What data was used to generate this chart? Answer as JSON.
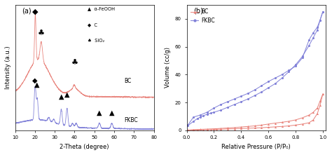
{
  "panel_a": {
    "xlabel": "2-Theta (degree)",
    "ylabel": "Intensity (a.u.)",
    "xlim": [
      10,
      80
    ],
    "label_a": "(a)",
    "bc_label": "BC",
    "fkbc_label": "FKBC",
    "bc_color": "#e8827a",
    "fkbc_color": "#8080d8",
    "legend_sym1": "▲",
    "legend_sym2": "◆",
    "legend_sym3": "♠",
    "legend_lbl1": "α-FeOOH",
    "legend_lbl2": "C",
    "legend_lbl3": "SiO₂"
  },
  "panel_b": {
    "xlabel": "Relative Pressure (P/P₀)",
    "ylabel": "Volume (cc/g)",
    "ylim": [
      0,
      90
    ],
    "xlim": [
      0.0,
      1.02
    ],
    "label_b": "(b)",
    "bc_label": "BC",
    "fkbc_label": "FKBC",
    "bc_color": "#e8827a",
    "fkbc_color": "#8080d8",
    "bc_ads_x": [
      0.01,
      0.05,
      0.08,
      0.12,
      0.15,
      0.18,
      0.22,
      0.25,
      0.3,
      0.35,
      0.4,
      0.45,
      0.5,
      0.55,
      0.6,
      0.65,
      0.7,
      0.75,
      0.8,
      0.85,
      0.9,
      0.93,
      0.96,
      0.98,
      1.0
    ],
    "bc_ads_y": [
      0.1,
      0.2,
      0.3,
      0.4,
      0.5,
      0.6,
      0.7,
      0.8,
      1.0,
      1.1,
      1.3,
      1.5,
      1.7,
      1.9,
      2.2,
      2.5,
      2.8,
      3.2,
      3.8,
      4.5,
      5.5,
      7.5,
      12.0,
      18.0,
      26.0
    ],
    "bc_des_x": [
      1.0,
      0.98,
      0.96,
      0.93,
      0.9,
      0.85,
      0.8,
      0.75,
      0.7,
      0.65,
      0.6,
      0.55,
      0.5,
      0.45,
      0.4,
      0.35,
      0.3,
      0.25,
      0.2,
      0.15,
      0.1,
      0.05,
      0.01
    ],
    "bc_des_y": [
      26.0,
      21.0,
      16.0,
      13.0,
      11.0,
      9.0,
      7.5,
      6.5,
      5.8,
      5.2,
      4.5,
      3.8,
      3.2,
      2.8,
      2.4,
      2.0,
      1.7,
      1.4,
      1.1,
      0.9,
      0.7,
      0.5,
      0.2
    ],
    "fkbc_ads_x": [
      0.01,
      0.05,
      0.08,
      0.1,
      0.12,
      0.15,
      0.18,
      0.2,
      0.25,
      0.3,
      0.35,
      0.4,
      0.45,
      0.5,
      0.55,
      0.6,
      0.65,
      0.7,
      0.75,
      0.8,
      0.85,
      0.9,
      0.93,
      0.96,
      0.98,
      1.0
    ],
    "fkbc_ads_y": [
      3.5,
      6.5,
      8.5,
      9.5,
      10.5,
      11.5,
      12.5,
      13.0,
      14.5,
      16.5,
      18.5,
      20.5,
      22.5,
      25.0,
      27.5,
      30.5,
      33.5,
      37.5,
      42.0,
      47.0,
      53.0,
      61.0,
      66.5,
      72.0,
      79.0,
      85.0
    ],
    "fkbc_des_x": [
      1.0,
      0.98,
      0.96,
      0.93,
      0.9,
      0.85,
      0.8,
      0.75,
      0.7,
      0.65,
      0.6,
      0.55,
      0.5,
      0.45,
      0.4,
      0.35,
      0.3,
      0.25,
      0.2,
      0.15,
      0.1,
      0.05,
      0.01
    ],
    "fkbc_des_y": [
      85.0,
      79.0,
      74.0,
      70.0,
      65.0,
      52.0,
      46.0,
      43.0,
      40.0,
      37.5,
      35.0,
      32.0,
      29.0,
      26.5,
      24.5,
      22.5,
      20.5,
      18.5,
      16.0,
      13.0,
      11.0,
      9.5,
      4.0
    ]
  }
}
